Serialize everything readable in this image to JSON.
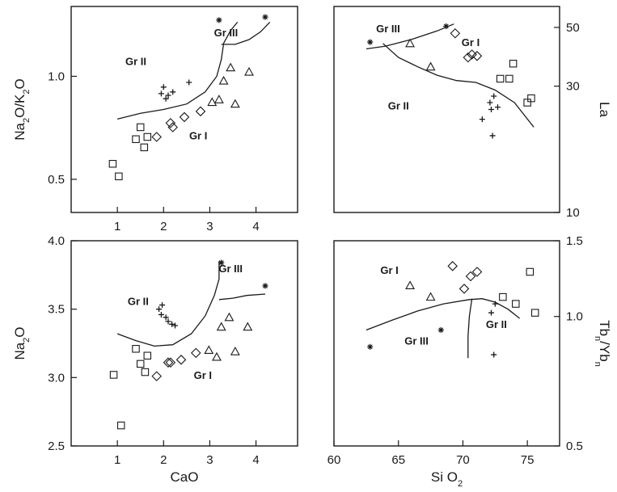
{
  "chart_data": [
    {
      "id": "a",
      "type": "scatter",
      "xlim": [
        0,
        4.9
      ],
      "ylim": [
        0.4,
        1.6
      ],
      "ylog": true,
      "xticks": [
        {
          "v": 1,
          "t": "1"
        },
        {
          "v": 2,
          "t": "2"
        },
        {
          "v": 3,
          "t": "3"
        },
        {
          "v": 4,
          "t": "4"
        }
      ],
      "yticks": [
        {
          "v": 0.5,
          "t": "0.5"
        },
        {
          "v": 1.0,
          "t": "1.0"
        }
      ],
      "ylabel": "Na₂O/K₂O",
      "xlabel": "",
      "group_labels": [
        {
          "text": "Gr II",
          "x": 1.4,
          "y": 1.08
        },
        {
          "text": "Gr III",
          "x": 3.35,
          "y": 1.31
        },
        {
          "text": "Gr I",
          "x": 2.75,
          "y": 0.655
        }
      ],
      "boundaries": [
        [
          [
            1.0,
            0.75
          ],
          [
            1.5,
            0.78
          ],
          [
            2.0,
            0.8
          ],
          [
            2.5,
            0.83
          ],
          [
            2.9,
            0.9
          ],
          [
            3.15,
            1.0
          ],
          [
            3.25,
            1.12
          ],
          [
            3.3,
            1.25
          ],
          [
            3.45,
            1.36
          ],
          [
            3.6,
            1.44
          ]
        ],
        [
          [
            3.25,
            1.24
          ],
          [
            3.55,
            1.24
          ],
          [
            3.85,
            1.28
          ],
          [
            4.1,
            1.35
          ],
          [
            4.3,
            1.44
          ]
        ]
      ],
      "series": [
        {
          "marker": "square",
          "points": [
            [
              0.9,
              0.555
            ],
            [
              1.03,
              0.51
            ],
            [
              1.4,
              0.655
            ],
            [
              1.5,
              0.71
            ],
            [
              1.58,
              0.62
            ],
            [
              1.65,
              0.665
            ]
          ]
        },
        {
          "marker": "diamond",
          "points": [
            [
              1.85,
              0.665
            ],
            [
              2.15,
              0.73
            ],
            [
              2.2,
              0.71
            ],
            [
              2.45,
              0.76
            ],
            [
              2.8,
              0.79
            ]
          ]
        },
        {
          "marker": "plus",
          "points": [
            [
              1.95,
              0.89
            ],
            [
              2.0,
              0.93
            ],
            [
              2.05,
              0.86
            ],
            [
              2.1,
              0.88
            ],
            [
              2.2,
              0.9
            ],
            [
              2.55,
              0.96
            ]
          ]
        },
        {
          "marker": "triangle",
          "points": [
            [
              3.05,
              0.84
            ],
            [
              3.2,
              0.855
            ],
            [
              3.3,
              0.97
            ],
            [
              3.45,
              1.06
            ],
            [
              3.55,
              0.83
            ],
            [
              3.85,
              1.03
            ]
          ]
        },
        {
          "marker": "star",
          "points": [
            [
              3.2,
              1.46
            ],
            [
              4.2,
              1.49
            ]
          ]
        }
      ]
    },
    {
      "id": "b",
      "type": "scatter",
      "xlim": [
        60,
        77.5
      ],
      "ylim": [
        10,
        60
      ],
      "ylog": true,
      "xticks": [],
      "yticks": [
        {
          "v": 10,
          "t": "10"
        },
        {
          "v": 30,
          "t": "30"
        },
        {
          "v": 50,
          "t": "50"
        }
      ],
      "ylabel": "La",
      "xlabel": "",
      "group_labels": [
        {
          "text": "Gr III",
          "x": 64.2,
          "y": 48
        },
        {
          "text": "Gr I",
          "x": 70.6,
          "y": 42.5
        },
        {
          "text": "Gr II",
          "x": 65.0,
          "y": 24.5
        }
      ],
      "boundaries": [
        [
          [
            62.5,
            41.5
          ],
          [
            64,
            42.5
          ],
          [
            66,
            45
          ],
          [
            68,
            48.5
          ],
          [
            69.3,
            51.5
          ]
        ],
        [
          [
            63.8,
            43.5
          ],
          [
            65,
            38.5
          ],
          [
            66.5,
            35.5
          ],
          [
            68,
            33
          ],
          [
            69.5,
            31.5
          ],
          [
            71,
            31
          ],
          [
            72.5,
            29
          ],
          [
            74,
            26
          ],
          [
            75.5,
            21
          ]
        ]
      ],
      "series": [
        {
          "marker": "star",
          "points": [
            [
              62.8,
              44
            ],
            [
              68.7,
              50.5
            ]
          ]
        },
        {
          "marker": "diamond",
          "points": [
            [
              69.4,
              47.5
            ],
            [
              70.4,
              38.5
            ],
            [
              70.7,
              39.5
            ],
            [
              71.1,
              39
            ]
          ]
        },
        {
          "marker": "triangle",
          "points": [
            [
              65.9,
              43.5
            ],
            [
              67.5,
              35.5
            ]
          ]
        },
        {
          "marker": "square",
          "points": [
            [
              72.9,
              32
            ],
            [
              73.6,
              32
            ],
            [
              73.9,
              36.5
            ],
            [
              75,
              26
            ],
            [
              75.3,
              27
            ]
          ]
        },
        {
          "marker": "plus",
          "points": [
            [
              71.5,
              22.5
            ],
            [
              72.1,
              26
            ],
            [
              72.4,
              27.5
            ],
            [
              72.7,
              25
            ],
            [
              72.2,
              24.5
            ],
            [
              72.3,
              19.5
            ]
          ]
        }
      ]
    },
    {
      "id": "c",
      "type": "scatter",
      "xlim": [
        0,
        4.9
      ],
      "ylim": [
        2.5,
        4.0
      ],
      "ylog": false,
      "xticks": [
        {
          "v": 1,
          "t": "1"
        },
        {
          "v": 2,
          "t": "2"
        },
        {
          "v": 3,
          "t": "3"
        },
        {
          "v": 4,
          "t": "4"
        }
      ],
      "yticks": [
        {
          "v": 2.5,
          "t": "2.5"
        },
        {
          "v": 3.0,
          "t": "3.0"
        },
        {
          "v": 3.5,
          "t": "3.5"
        },
        {
          "v": 4.0,
          "t": "4.0"
        }
      ],
      "ylabel": "Na₂O",
      "xlabel": "CaO",
      "group_labels": [
        {
          "text": "Gr II",
          "x": 1.45,
          "y": 3.53
        },
        {
          "text": "Gr III",
          "x": 3.45,
          "y": 3.77
        },
        {
          "text": "Gr I",
          "x": 2.85,
          "y": 2.99
        }
      ],
      "boundaries": [
        [
          [
            1.0,
            3.32
          ],
          [
            1.4,
            3.27
          ],
          [
            1.8,
            3.23
          ],
          [
            2.2,
            3.24
          ],
          [
            2.6,
            3.32
          ],
          [
            2.9,
            3.45
          ],
          [
            3.1,
            3.6
          ],
          [
            3.2,
            3.72
          ],
          [
            3.2,
            3.85
          ]
        ],
        [
          [
            3.2,
            3.57
          ],
          [
            3.5,
            3.58
          ],
          [
            3.8,
            3.6
          ],
          [
            4.2,
            3.61
          ]
        ]
      ],
      "series": [
        {
          "marker": "square",
          "points": [
            [
              0.92,
              3.02
            ],
            [
              1.08,
              2.65
            ],
            [
              1.4,
              3.21
            ],
            [
              1.5,
              3.1
            ],
            [
              1.6,
              3.04
            ],
            [
              1.65,
              3.16
            ]
          ]
        },
        {
          "marker": "diamond",
          "points": [
            [
              1.85,
              3.01
            ],
            [
              2.1,
              3.11
            ],
            [
              2.15,
              3.11
            ],
            [
              2.38,
              3.13
            ],
            [
              2.7,
              3.18
            ]
          ]
        },
        {
          "marker": "plus",
          "points": [
            [
              1.9,
              3.5
            ],
            [
              1.97,
              3.53
            ],
            [
              1.95,
              3.46
            ],
            [
              2.05,
              3.44
            ],
            [
              2.1,
              3.41
            ],
            [
              2.18,
              3.39
            ],
            [
              2.25,
              3.38
            ]
          ]
        },
        {
          "marker": "triangle",
          "points": [
            [
              2.98,
              3.2
            ],
            [
              3.15,
              3.15
            ],
            [
              3.25,
              3.37
            ],
            [
              3.42,
              3.44
            ],
            [
              3.55,
              3.19
            ],
            [
              3.82,
              3.37
            ]
          ]
        },
        {
          "marker": "star",
          "points": [
            [
              3.25,
              3.84
            ],
            [
              4.2,
              3.67
            ]
          ]
        }
      ]
    },
    {
      "id": "d",
      "type": "scatter",
      "xlim": [
        60,
        77.5
      ],
      "ylim": [
        0.5,
        1.5
      ],
      "ylog": true,
      "xticks": [
        {
          "v": 60,
          "t": "60"
        },
        {
          "v": 65,
          "t": "65"
        },
        {
          "v": 70,
          "t": "70"
        },
        {
          "v": 75,
          "t": "75"
        }
      ],
      "yticks": [
        {
          "v": 0.5,
          "t": "0.5"
        },
        {
          "v": 1.0,
          "t": "1.0"
        },
        {
          "v": 1.5,
          "t": "1.5"
        }
      ],
      "ylabel": "Tbₙ/Ybₙ",
      "xlabel": "Si O₂",
      "group_labels": [
        {
          "text": "Gr I",
          "x": 64.3,
          "y": 1.255
        },
        {
          "text": "Gr III",
          "x": 66.4,
          "y": 0.86
        },
        {
          "text": "Gr II",
          "x": 72.6,
          "y": 0.94
        }
      ],
      "boundaries": [
        [
          [
            62.5,
            0.93
          ],
          [
            64.5,
            0.98
          ],
          [
            66.5,
            1.03
          ],
          [
            68.5,
            1.07
          ],
          [
            70.5,
            1.095
          ],
          [
            71.5,
            1.1
          ],
          [
            72.5,
            1.08
          ],
          [
            73.5,
            1.04
          ],
          [
            74.4,
            0.99
          ]
        ],
        [
          [
            70.7,
            1.1
          ],
          [
            70.5,
            1.0
          ],
          [
            70.4,
            0.9
          ],
          [
            70.4,
            0.8
          ]
        ]
      ],
      "series": [
        {
          "marker": "star",
          "points": [
            [
              62.8,
              0.85
            ],
            [
              68.3,
              0.93
            ]
          ]
        },
        {
          "marker": "triangle",
          "points": [
            [
              65.9,
              1.18
            ],
            [
              67.5,
              1.11
            ]
          ]
        },
        {
          "marker": "diamond",
          "points": [
            [
              69.2,
              1.31
            ],
            [
              70.1,
              1.16
            ],
            [
              70.6,
              1.24
            ],
            [
              71.1,
              1.27
            ]
          ]
        },
        {
          "marker": "square",
          "points": [
            [
              73.1,
              1.11
            ],
            [
              74.1,
              1.07
            ],
            [
              75.2,
              1.27
            ],
            [
              75.6,
              1.02
            ]
          ]
        },
        {
          "marker": "plus",
          "points": [
            [
              72.5,
              1.07
            ],
            [
              72.2,
              1.02
            ],
            [
              72.4,
              0.815
            ]
          ]
        }
      ]
    }
  ]
}
